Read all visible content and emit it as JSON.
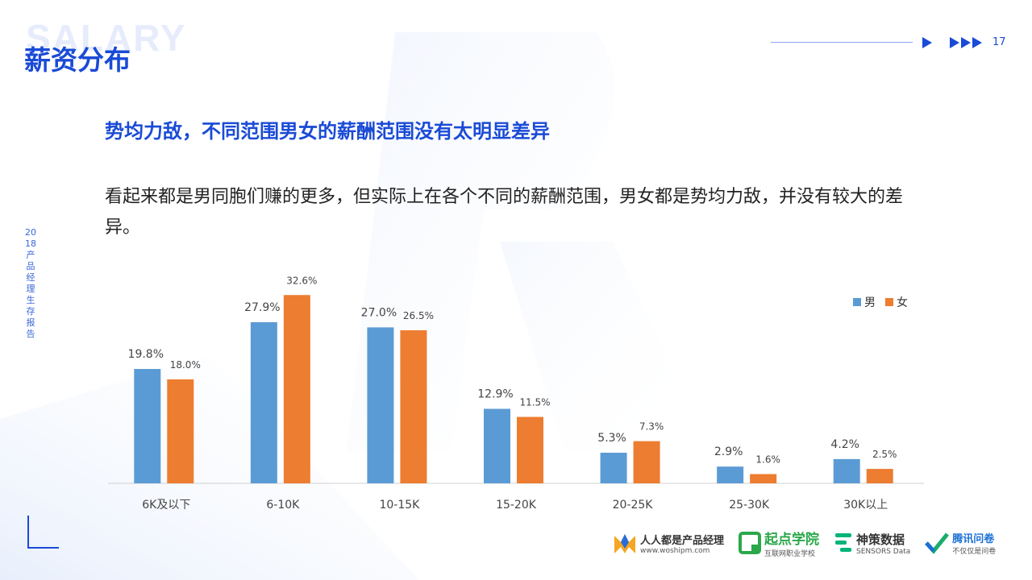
{
  "header": {
    "watermark": "SALARY",
    "title": "薪资分布",
    "page_number": "17"
  },
  "sidebar": {
    "vertical_text": "2018产品经理生存报告"
  },
  "content": {
    "subtitle": "势均力敌，不同范围男女的薪酬范围没有太明显差异",
    "description": "看起来都是男同胞们赚的更多，但实际上在各个不同的薪酬范围，男女都是势均力敌，并没有较大的差异。"
  },
  "chart_data": {
    "type": "bar",
    "categories": [
      "6K及以下",
      "6-10K",
      "10-15K",
      "15-20K",
      "20-25K",
      "25-30K",
      "30K以上"
    ],
    "series": [
      {
        "name": "男",
        "color": "#5b9bd5",
        "values": [
          19.8,
          27.9,
          27.0,
          12.9,
          5.3,
          2.9,
          4.2
        ],
        "labels": [
          "19.8%",
          "27.9%",
          "27.0%",
          "12.9%",
          "5.3%",
          "2.9%",
          "4.2%"
        ]
      },
      {
        "name": "女",
        "color": "#ed7d31",
        "values": [
          18.0,
          32.6,
          26.5,
          11.5,
          7.3,
          1.6,
          2.5
        ],
        "labels": [
          "18.0%",
          "32.6%",
          "26.5%",
          "11.5%",
          "7.3%",
          "1.6%",
          "2.5%"
        ]
      }
    ],
    "ylim": [
      0,
      33
    ],
    "legend_position": "top-right",
    "grid": false
  },
  "logos": [
    {
      "name": "人人都是产品经理",
      "sub": "www.woshipm.com",
      "icon": "woshipm-logo",
      "color": "#f5a623"
    },
    {
      "name": "起点学院",
      "sub": "互联网职业学校",
      "icon": "qidian-logo",
      "color": "#2aa84a"
    },
    {
      "name": "神策数据",
      "sub": "SENSORS Data",
      "icon": "sensors-logo",
      "color": "#00b47a"
    },
    {
      "name": "腾讯问卷",
      "sub": "不仅仅是问卷",
      "icon": "tencent-wj-logo",
      "color": "#1aad6e"
    }
  ]
}
